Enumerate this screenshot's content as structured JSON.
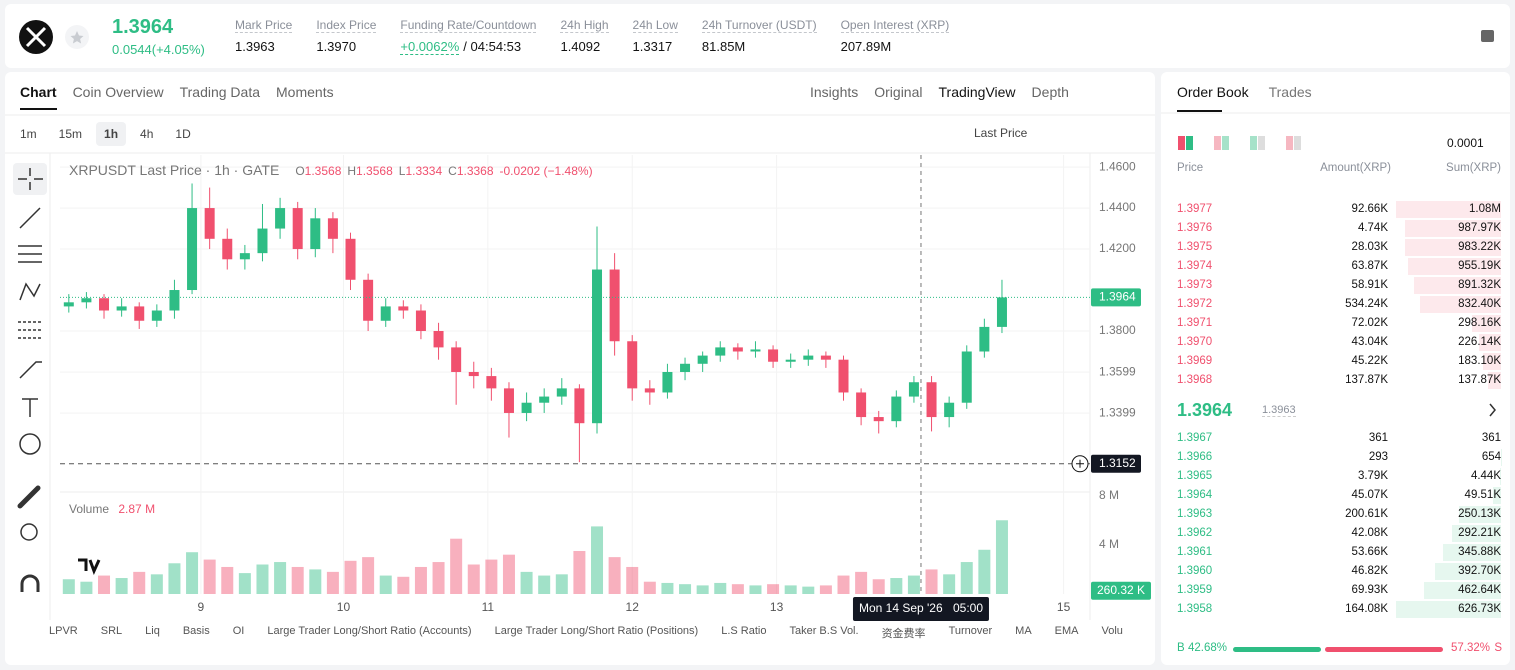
{
  "header": {
    "price": "1.3964",
    "change": "0.0544(+4.05%)",
    "stats": [
      {
        "label": "Mark Price",
        "value": "1.3963"
      },
      {
        "label": "Index Price",
        "value": "1.3970"
      },
      {
        "label": "Funding Rate/Countdown",
        "value": "+0.0062%",
        "extra": "/ 04:54:53"
      },
      {
        "label": "24h High",
        "value": "1.4092"
      },
      {
        "label": "24h Low",
        "value": "1.3317"
      },
      {
        "label": "24h Turnover (USDT)",
        "value": "81.85M"
      },
      {
        "label": "Open Interest (XRP)",
        "value": "207.89M"
      }
    ]
  },
  "tabs": [
    "Chart",
    "Coin Overview",
    "Trading Data",
    "Moments"
  ],
  "view_tabs": [
    "Insights",
    "Original",
    "TradingView",
    "Depth"
  ],
  "intervals": [
    "1m",
    "15m",
    "1h",
    "4h",
    "1D"
  ],
  "price_type": "Last Price",
  "indicator_tabs": [
    "LPVR",
    "SRL",
    "Liq",
    "Basis",
    "OI",
    "Large Trader Long/Short Ratio (Accounts)",
    "Large Trader Long/Short Ratio (Positions)",
    "L.S Ratio",
    "Taker B.S Vol.",
    "资金费率",
    "Turnover",
    "MA",
    "EMA",
    "Volu"
  ],
  "chart_data": {
    "type": "candlestick",
    "title": "XRPUSDT Last Price · 1h · GATE",
    "ohlc_legend": [
      {
        "key": "O",
        "value": "1.3568"
      },
      {
        "key": "H",
        "value": "1.3568"
      },
      {
        "key": "L",
        "value": "1.3334"
      },
      {
        "key": "C",
        "value": "1.3368"
      }
    ],
    "change_legend": "-0.0202 (−1.48%)",
    "up_color": "#2ebd85",
    "down_color": "#f0506e",
    "categories": [
      null,
      null,
      null,
      null,
      null,
      null,
      null,
      null,
      null,
      null,
      null,
      null,
      null,
      null,
      null,
      null,
      null,
      null,
      null,
      null,
      null,
      null,
      null,
      null,
      null,
      null,
      null,
      null,
      null,
      null,
      null,
      null,
      null,
      null,
      null,
      null,
      null,
      null,
      null,
      null,
      null,
      null,
      null,
      null,
      null,
      null,
      null,
      null,
      null,
      null,
      null,
      null,
      null,
      null
    ],
    "ohlc": [
      [
        1.392,
        1.398,
        1.389,
        1.394
      ],
      [
        1.394,
        1.399,
        1.391,
        1.396
      ],
      [
        1.396,
        1.398,
        1.386,
        1.39
      ],
      [
        1.39,
        1.396,
        1.387,
        1.392
      ],
      [
        1.392,
        1.394,
        1.381,
        1.385
      ],
      [
        1.385,
        1.393,
        1.382,
        1.39
      ],
      [
        1.39,
        1.405,
        1.386,
        1.4
      ],
      [
        1.4,
        1.452,
        1.398,
        1.44
      ],
      [
        1.44,
        1.45,
        1.42,
        1.425
      ],
      [
        1.425,
        1.43,
        1.41,
        1.415
      ],
      [
        1.415,
        1.422,
        1.41,
        1.418
      ],
      [
        1.418,
        1.442,
        1.414,
        1.43
      ],
      [
        1.43,
        1.445,
        1.425,
        1.44
      ],
      [
        1.44,
        1.443,
        1.415,
        1.42
      ],
      [
        1.42,
        1.44,
        1.416,
        1.435
      ],
      [
        1.435,
        1.438,
        1.418,
        1.425
      ],
      [
        1.425,
        1.428,
        1.4,
        1.405
      ],
      [
        1.405,
        1.408,
        1.38,
        1.385
      ],
      [
        1.385,
        1.396,
        1.382,
        1.392
      ],
      [
        1.392,
        1.395,
        1.386,
        1.39
      ],
      [
        1.39,
        1.393,
        1.376,
        1.38
      ],
      [
        1.38,
        1.384,
        1.366,
        1.372
      ],
      [
        1.372,
        1.375,
        1.344,
        1.36
      ],
      [
        1.36,
        1.365,
        1.352,
        1.358
      ],
      [
        1.358,
        1.362,
        1.346,
        1.352
      ],
      [
        1.352,
        1.355,
        1.328,
        1.34
      ],
      [
        1.34,
        1.35,
        1.336,
        1.345
      ],
      [
        1.345,
        1.352,
        1.34,
        1.348
      ],
      [
        1.348,
        1.357,
        1.344,
        1.352
      ],
      [
        1.352,
        1.354,
        1.316,
        1.335
      ],
      [
        1.335,
        1.431,
        1.33,
        1.41
      ],
      [
        1.41,
        1.418,
        1.368,
        1.375
      ],
      [
        1.375,
        1.378,
        1.346,
        1.352
      ],
      [
        1.352,
        1.356,
        1.344,
        1.35
      ],
      [
        1.35,
        1.364,
        1.347,
        1.36
      ],
      [
        1.36,
        1.367,
        1.356,
        1.364
      ],
      [
        1.364,
        1.37,
        1.36,
        1.368
      ],
      [
        1.368,
        1.375,
        1.365,
        1.372
      ],
      [
        1.372,
        1.374,
        1.366,
        1.37
      ],
      [
        1.37,
        1.375,
        1.367,
        1.371
      ],
      [
        1.371,
        1.373,
        1.362,
        1.365
      ],
      [
        1.365,
        1.369,
        1.362,
        1.366
      ],
      [
        1.366,
        1.371,
        1.363,
        1.368
      ],
      [
        1.368,
        1.37,
        1.362,
        1.366
      ],
      [
        1.366,
        1.368,
        1.346,
        1.35
      ],
      [
        1.35,
        1.352,
        1.334,
        1.338
      ],
      [
        1.338,
        1.341,
        1.33,
        1.336
      ],
      [
        1.336,
        1.351,
        1.333,
        1.348
      ],
      [
        1.348,
        1.358,
        1.345,
        1.355
      ],
      [
        1.355,
        1.358,
        1.331,
        1.338
      ],
      [
        1.338,
        1.348,
        1.333,
        1.345
      ],
      [
        1.345,
        1.373,
        1.342,
        1.37
      ],
      [
        1.37,
        1.386,
        1.367,
        1.382
      ],
      [
        1.382,
        1.405,
        1.379,
        1.3964
      ]
    ],
    "xlim": [
      -0.5,
      58
    ],
    "xticks": [
      {
        "value": 7.5,
        "label": "9"
      },
      {
        "value": 15.6,
        "label": "10"
      },
      {
        "value": 23.8,
        "label": "11"
      },
      {
        "value": 32,
        "label": "12"
      },
      {
        "value": 40.2,
        "label": "13"
      },
      {
        "value": 56.5,
        "label": "15"
      }
    ],
    "ylim": [
      1.3024,
      1.4659
    ],
    "yticks": [
      {
        "value": 1.46,
        "label": "1.4600"
      },
      {
        "value": 1.44,
        "label": "1.4400"
      },
      {
        "value": 1.42,
        "label": "1.4200"
      },
      {
        "value": 1.38,
        "label": "1.3800"
      },
      1.3599,
      1.3399
    ],
    "grid": true,
    "last_price": 1.3964,
    "crosshair": {
      "price": 1.3152,
      "index": 48.4,
      "date": "Mon 14 Sep '26",
      "time": "05:00"
    },
    "volume": {
      "label": "Volume",
      "current": "2.87 M",
      "values": [
        1.2,
        1.0,
        1.5,
        1.3,
        1.8,
        1.6,
        2.5,
        3.4,
        2.8,
        2.2,
        1.7,
        2.4,
        2.6,
        2.2,
        2.0,
        1.8,
        2.7,
        3.0,
        1.5,
        1.4,
        2.2,
        2.6,
        4.5,
        2.4,
        2.8,
        3.2,
        1.8,
        1.5,
        1.6,
        3.5,
        5.5,
        3.0,
        2.2,
        1.0,
        0.9,
        0.8,
        0.7,
        0.9,
        0.8,
        0.7,
        0.8,
        0.7,
        0.6,
        0.7,
        1.5,
        1.8,
        1.2,
        1.3,
        1.5,
        2.0,
        1.6,
        2.6,
        3.6,
        6.0
      ],
      "ylim": [
        0,
        8.3
      ],
      "yticks": [
        {
          "value": 8,
          "label": "8 M"
        },
        {
          "value": 4,
          "label": "4 M"
        }
      ],
      "last": 0.26032,
      "last_label": "260.32 K"
    }
  },
  "order_book": {
    "tabs": [
      "Order Book",
      "Trades"
    ],
    "tick_size": "0.0001",
    "headers": [
      "Price",
      "Amount(XRP)",
      "Sum(XRP)"
    ],
    "asks": {
      "prices": [
        "1.3977",
        "1.3976",
        "1.3975",
        "1.3974",
        "1.3973",
        "1.3972",
        "1.3971",
        "1.3970",
        "1.3969",
        "1.3968"
      ],
      "amounts": [
        "92.66K",
        "4.74K",
        "28.03K",
        "63.87K",
        "58.91K",
        "534.24K",
        "72.02K",
        "43.04K",
        "45.22K",
        "137.87K"
      ],
      "sums": [
        1080000,
        987970,
        983220,
        955190,
        891320,
        832400,
        298160,
        226140,
        183100,
        137870
      ],
      "sum_labels": [
        "1.08M",
        "987.97K",
        "983.22K",
        "955.19K",
        "891.32K",
        "832.40K",
        "298.16K",
        "226.14K",
        "183.10K",
        "137.87K"
      ]
    },
    "mid_price": "1.3964",
    "mark_price": "1.3963",
    "bids": {
      "prices": [
        "1.3967",
        "1.3966",
        "1.3965",
        "1.3964",
        "1.3963",
        "1.3962",
        "1.3961",
        "1.3960",
        "1.3959",
        "1.3958"
      ],
      "amounts": [
        "361",
        "293",
        "3.79K",
        "45.07K",
        "200.61K",
        "42.08K",
        "53.66K",
        "46.82K",
        "69.93K",
        "164.08K"
      ],
      "sums": [
        361,
        654,
        4440,
        49510,
        250130,
        292210,
        345880,
        392700,
        462640,
        626730
      ],
      "sum_labels": [
        "361",
        "654",
        "4.44K",
        "49.51K",
        "250.13K",
        "292.21K",
        "345.88K",
        "392.70K",
        "462.64K",
        "626.73K"
      ]
    },
    "buy_prefix": "B",
    "buy": 42.68,
    "buy_label": "42.68%",
    "sell": 57.32,
    "sell_label": "57.32%",
    "sell_suffix": "S"
  }
}
